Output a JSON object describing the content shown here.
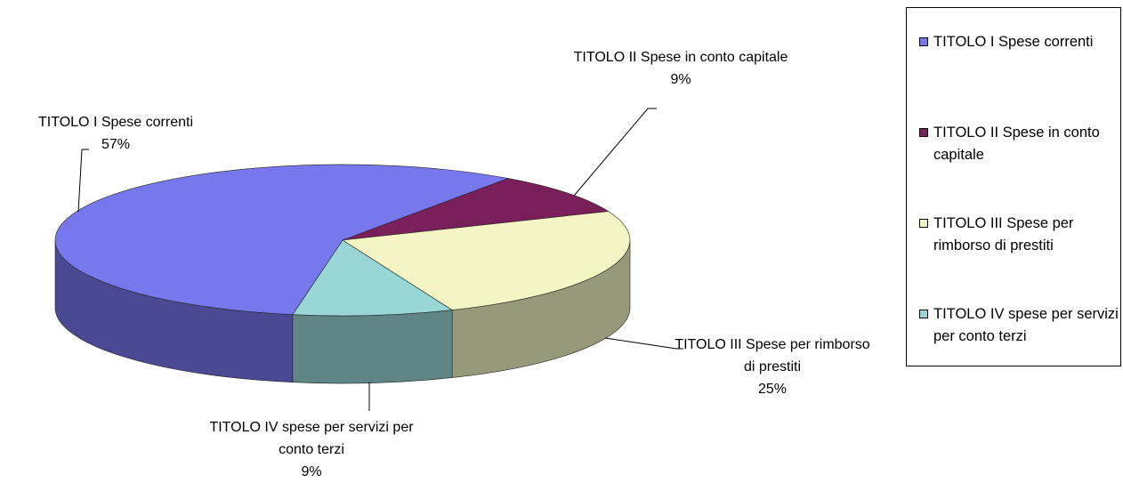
{
  "chart_data": {
    "type": "pie",
    "categories": [
      "TITOLO I Spese correnti",
      "TITOLO II Spese in conto capitale",
      "TITOLO III Spese per rimborso di prestiti",
      "TITOLO IV spese per servizi per conto terzi"
    ],
    "values": [
      57,
      9,
      25,
      9
    ],
    "value_labels": [
      "57%",
      "9%",
      "25%",
      "9%"
    ],
    "colors": [
      "#7777ee",
      "#7b1f5a",
      "#f5f5c4",
      "#99d6d6"
    ],
    "legend": "right"
  }
}
